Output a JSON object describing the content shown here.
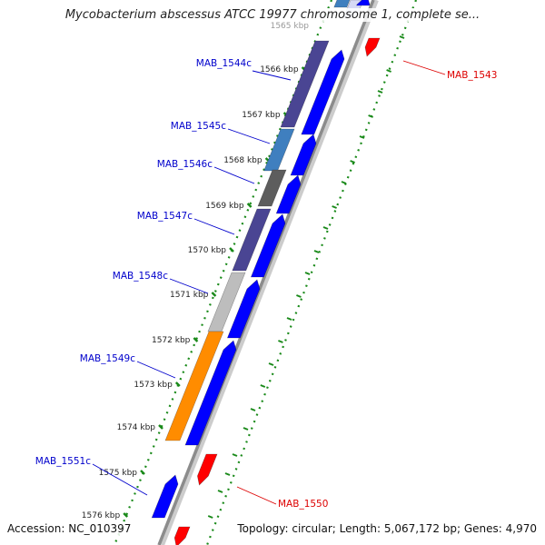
{
  "title": "Mycobacterium abscessus ATCC 19977 chromosome 1, complete se...",
  "footer": {
    "accession": "Accession: NC_010397",
    "info": "Topology: circular; Length: 5,067,172 bp; Genes: 4,970"
  },
  "colors": {
    "gene_forward": "#0000ff",
    "gene_reverse_highlight": "#ff0000",
    "ruler_dots": "#1a8a1a",
    "backbone": "#8c8c8c",
    "label_blue": "#0000cc",
    "label_red": "#dd0000"
  },
  "ruler": {
    "top_clipped": "1565 kbp",
    "ticks": [
      "1566 kbp",
      "1567 kbp",
      "1568 kbp",
      "1569 kbp",
      "1570 kbp",
      "1571 kbp",
      "1572 kbp",
      "1573 kbp",
      "1574 kbp",
      "1575 kbp",
      "1576 kbp"
    ]
  },
  "genes_left": [
    "MAB_1544c",
    "MAB_1545c",
    "MAB_1546c",
    "MAB_1547c",
    "MAB_1548c",
    "MAB_1549c",
    "MAB_1551c"
  ],
  "genes_right": [
    "MAB_1543",
    "MAB_1550"
  ],
  "cog_colors": {
    "MAB_1544c": "#4a4593",
    "MAB_1545c": "#3f7fbf",
    "MAB_1546c": "#5d5d5d",
    "MAB_1547c": "#4a4593",
    "MAB_1548c": "#bdbdbd",
    "MAB_1549c": "#ff8c00"
  }
}
